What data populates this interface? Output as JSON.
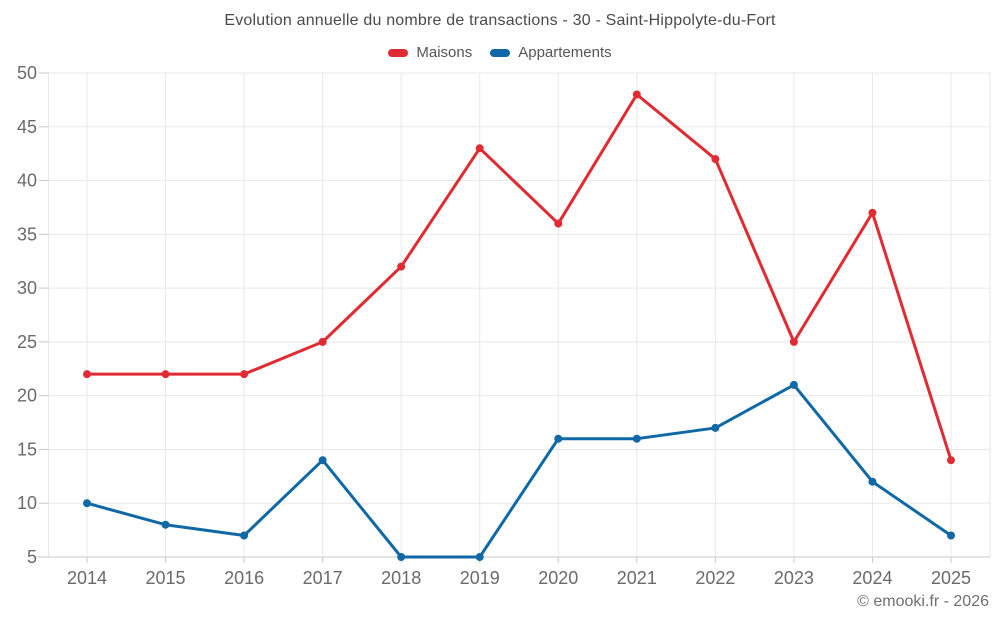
{
  "chart": {
    "watermark": "© emooki.fr - 2026",
    "colors": {
      "background": "#ffffff",
      "grid": "#e8e8e8",
      "axis_line": "#c9c9c9",
      "title_text": "#4a4a4a",
      "legend_text": "#555555",
      "tick_text": "#6a6a6a",
      "watermark_text": "#6f6f6f"
    }
  },
  "chart_data": {
    "type": "line",
    "title": "Evolution annuelle du nombre de transactions - 30 - Saint-Hippolyte-du-Fort",
    "xlabel": "",
    "ylabel": "",
    "categories": [
      "2014",
      "2015",
      "2016",
      "2017",
      "2018",
      "2019",
      "2020",
      "2021",
      "2022",
      "2023",
      "2024",
      "2025"
    ],
    "series": [
      {
        "name": "Maisons",
        "color": "#e12b33",
        "values": [
          22,
          22,
          22,
          25,
          32,
          43,
          36,
          48,
          42,
          25,
          37,
          14
        ]
      },
      {
        "name": "Appartements",
        "color": "#1069a6",
        "values": [
          10,
          8,
          7,
          14,
          5,
          5,
          16,
          16,
          17,
          21,
          12,
          7
        ]
      }
    ],
    "ylim": [
      5,
      50
    ],
    "ytick_step": 5,
    "grid": true,
    "legend_position": "top",
    "marker_radius": 4,
    "line_width": 3
  }
}
